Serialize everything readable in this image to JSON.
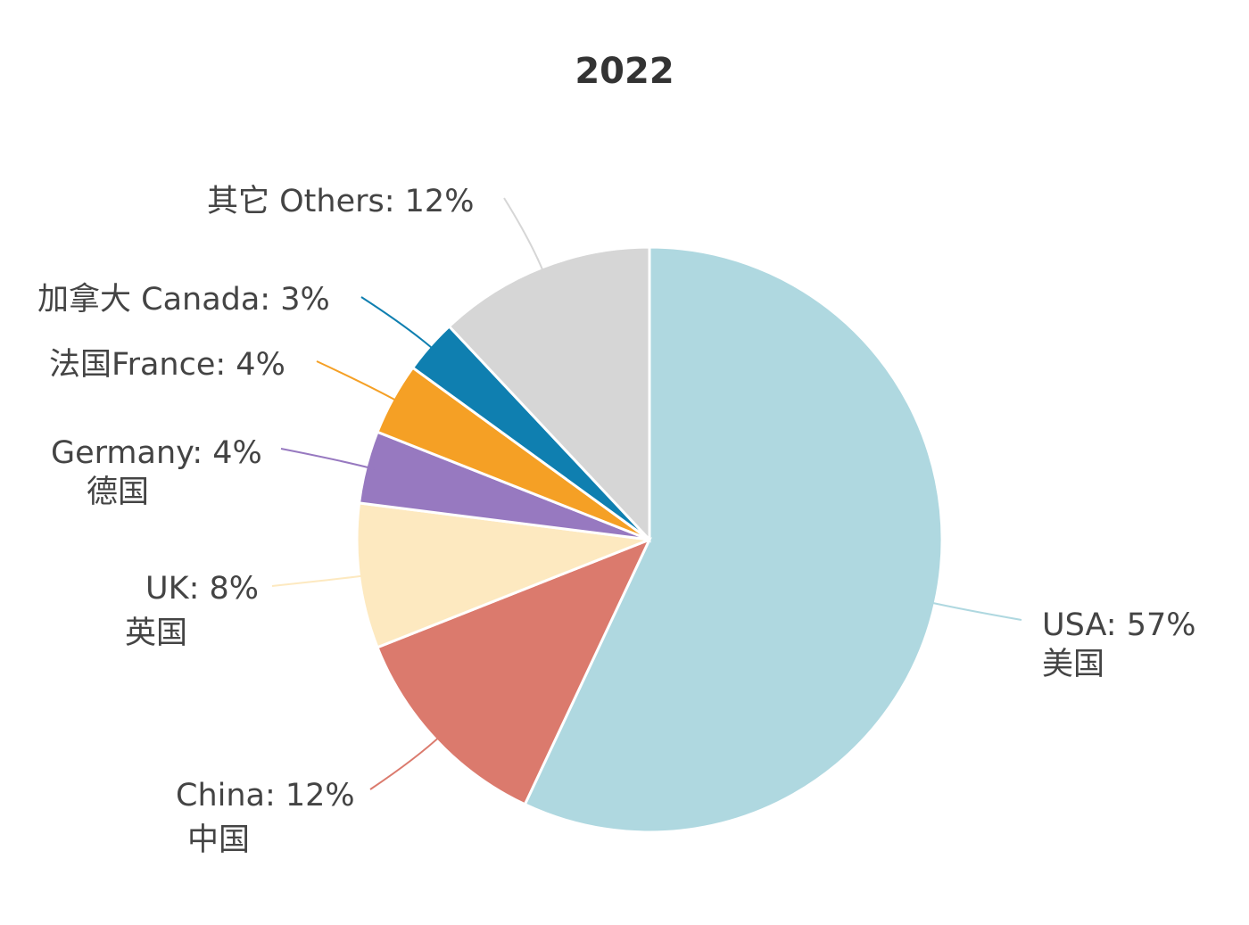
{
  "chart_data": {
    "type": "pie",
    "title": "2022",
    "values": [
      57,
      12,
      8,
      4,
      4,
      3,
      12
    ],
    "value_labels": [
      [
        "USA: 57%",
        "美国"
      ],
      [
        "China: 12%",
        "中国"
      ],
      [
        "UK: 8%",
        "英国"
      ],
      [
        "Germany: 4%",
        "德国"
      ],
      [
        "法国France: 4%"
      ],
      [
        "加拿大 Canada: 3%"
      ],
      [
        "其它 Others: 12%"
      ]
    ],
    "colors": [
      "#afd8e0",
      "#db7a6d",
      "#fde9c0",
      "#9779c0",
      "#f5a025",
      "#0f7fb0",
      "#d6d6d6"
    ]
  }
}
